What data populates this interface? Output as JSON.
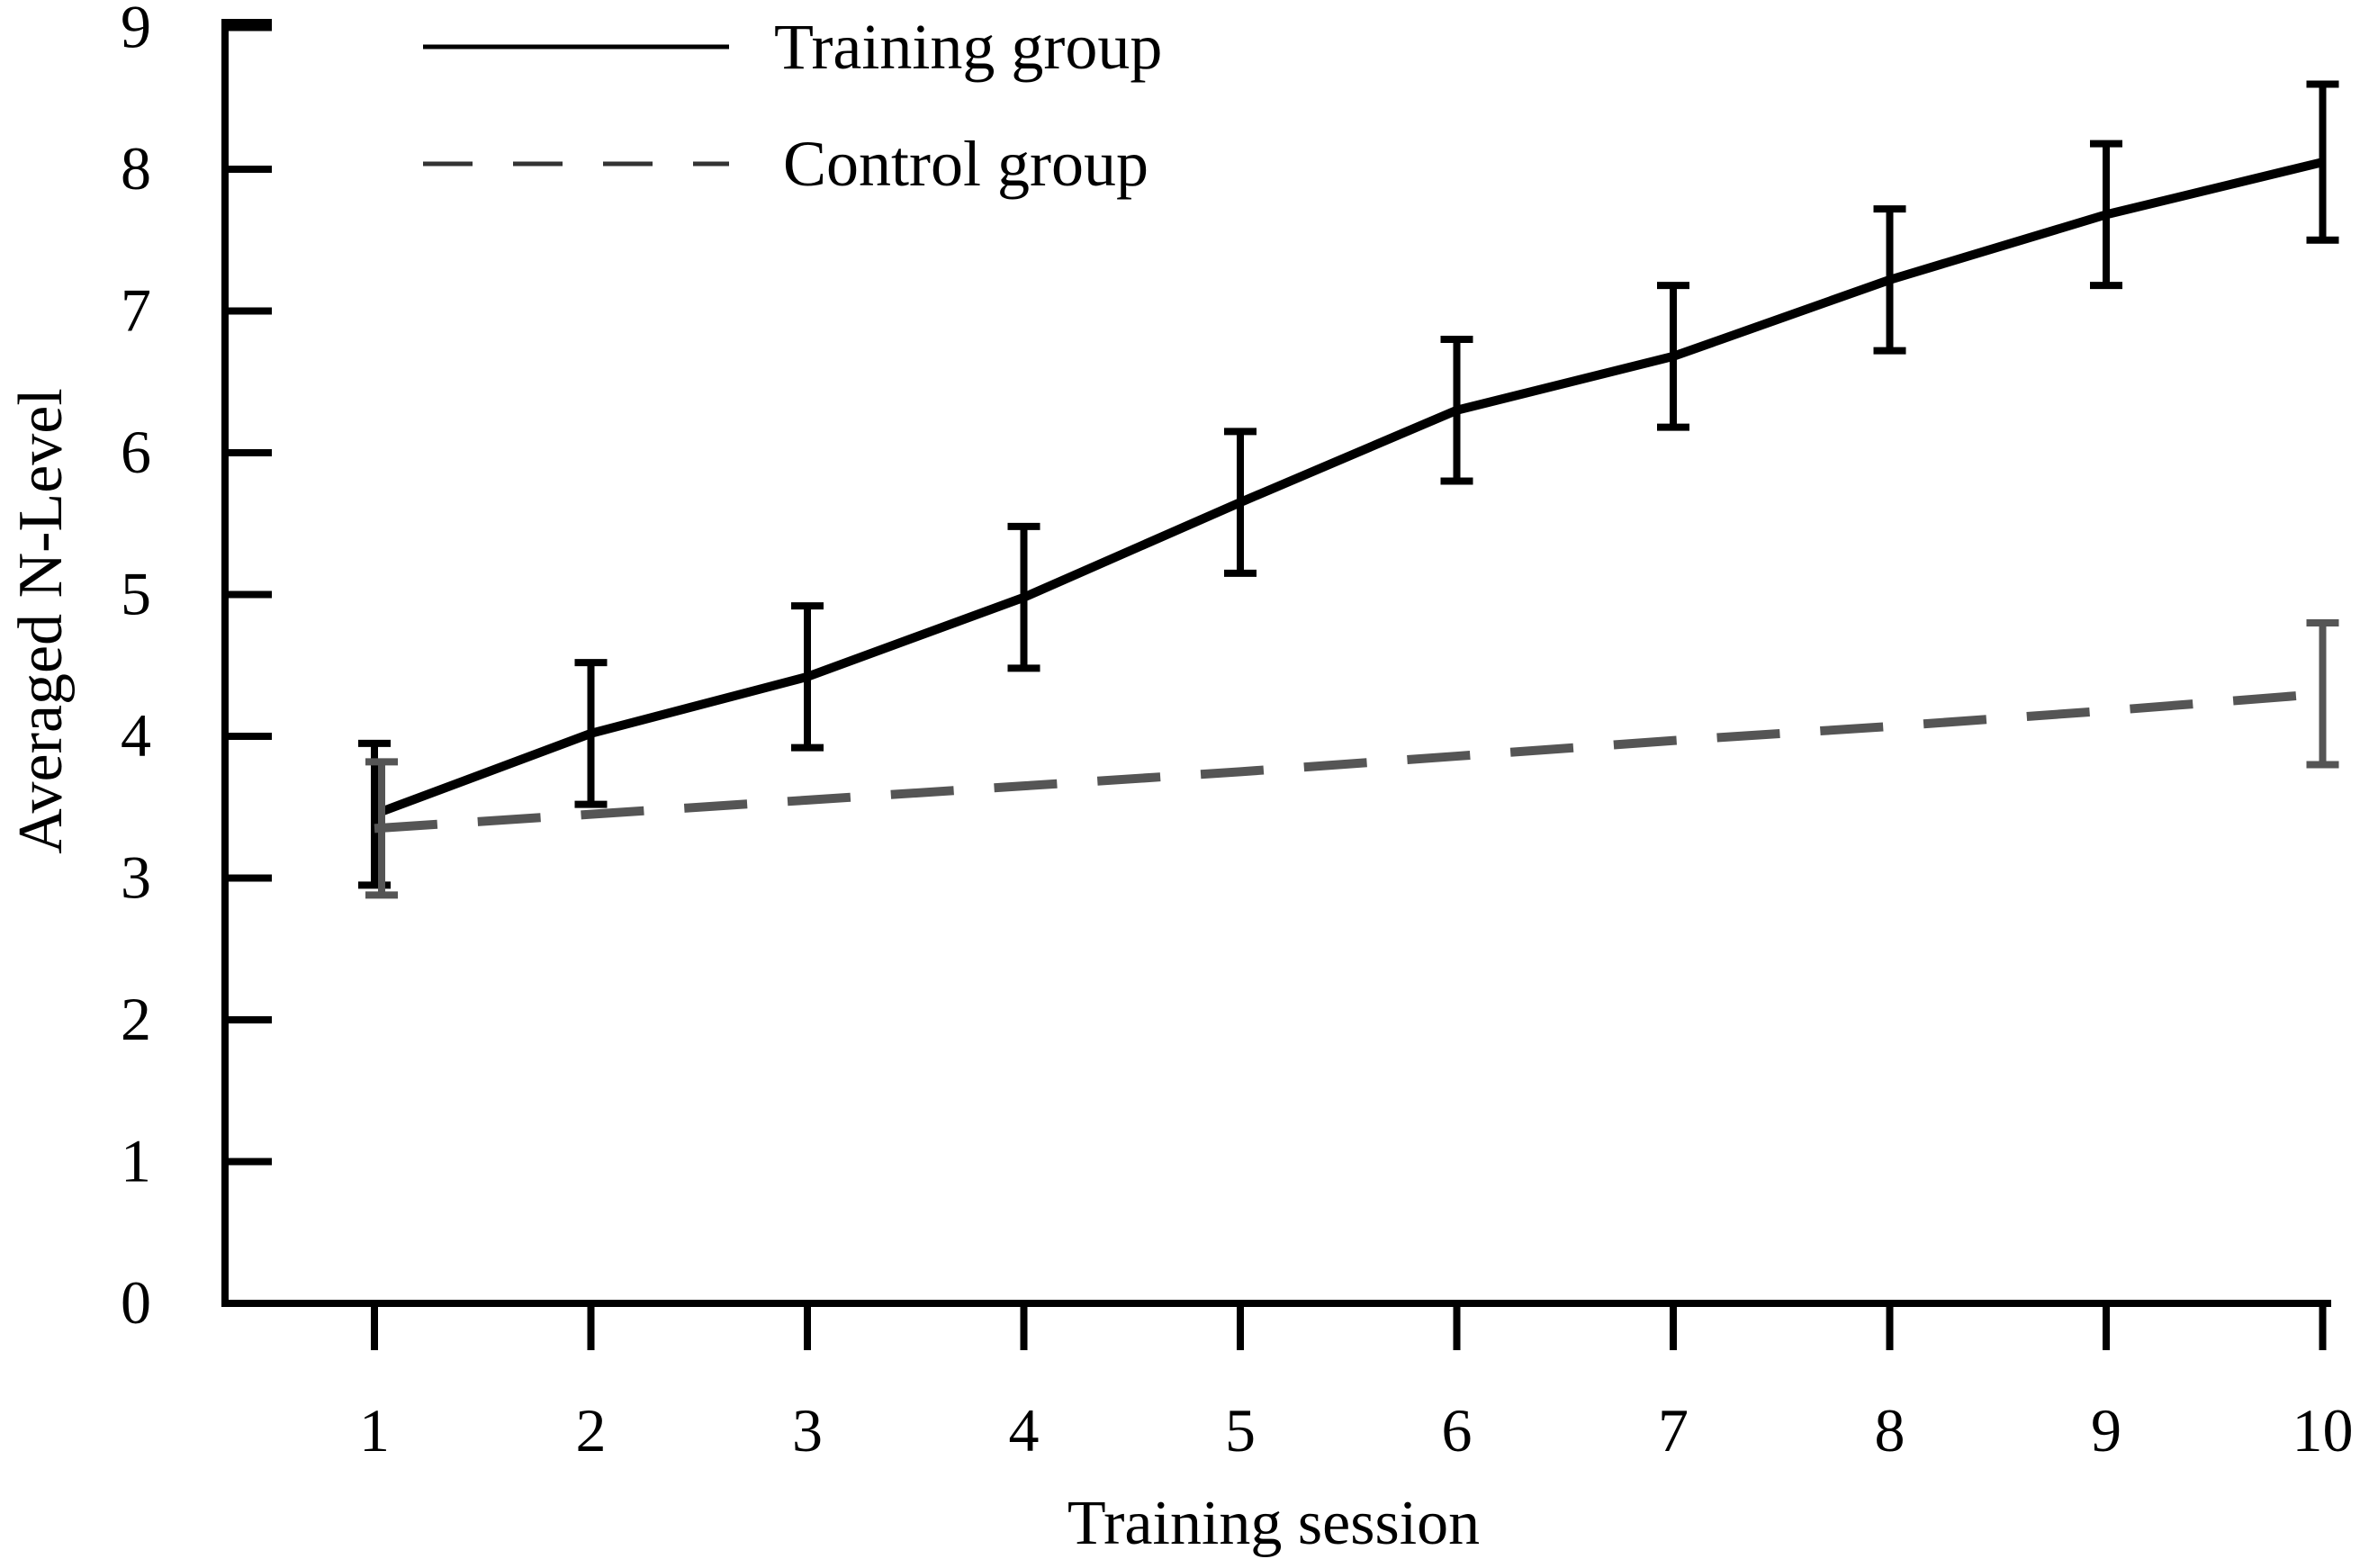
{
  "chart_data": {
    "type": "line",
    "title": "",
    "xlabel": "Training session",
    "ylabel": "Averaged N-Level",
    "x": [
      1,
      2,
      3,
      4,
      5,
      6,
      7,
      8,
      9,
      10
    ],
    "x_tick_labels": [
      "1",
      "2",
      "3",
      "4",
      "5",
      "6",
      "7",
      "8",
      "9",
      "10"
    ],
    "y_ticks": [
      0,
      1,
      2,
      3,
      4,
      5,
      6,
      7,
      8,
      9
    ],
    "y_tick_labels": [
      "0",
      "1",
      "2",
      "3",
      "4",
      "5",
      "6",
      "7",
      "8",
      "9"
    ],
    "xlim": [
      0.3,
      10
    ],
    "ylim": [
      0,
      9
    ],
    "grid": false,
    "legend_position": "top-left",
    "series": [
      {
        "name": "Training group",
        "style": "solid",
        "color": "#000000",
        "values": [
          3.45,
          4.02,
          4.42,
          4.98,
          5.65,
          6.3,
          6.68,
          7.22,
          7.68,
          8.05
        ],
        "error": [
          0.5,
          0.5,
          0.5,
          0.5,
          0.5,
          0.5,
          0.5,
          0.5,
          0.5,
          0.55
        ]
      },
      {
        "name": "Control group",
        "style": "dashed",
        "color": "#555555",
        "values": [
          3.35,
          3.45,
          3.55,
          3.65,
          3.75,
          3.86,
          3.97,
          4.07,
          4.18,
          4.3
        ],
        "error_points": [
          1,
          10
        ],
        "error": [
          0.47,
          0.5
        ]
      }
    ]
  }
}
